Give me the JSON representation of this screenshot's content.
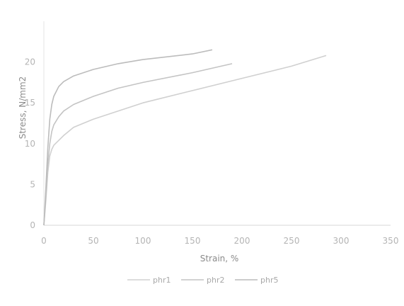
{
  "chart_data": {
    "type": "line",
    "title": "",
    "xlabel": "Strain, %",
    "ylabel": "Stress, N/mm2",
    "xlim": [
      0,
      350
    ],
    "ylim": [
      0,
      25
    ],
    "x_ticks": [
      "0",
      "50",
      "100",
      "150",
      "200",
      "250",
      "300",
      "350"
    ],
    "y_ticks": [
      "0",
      "5",
      "10",
      "15",
      "20"
    ],
    "grid": false,
    "legend_position": "bottom",
    "series": [
      {
        "name": "phr1",
        "color": "#d0d0d0",
        "x": [
          0,
          2,
          4,
          6,
          8,
          10,
          15,
          20,
          30,
          50,
          75,
          100,
          150,
          200,
          250,
          285
        ],
        "y": [
          0,
          3,
          6.5,
          8.5,
          9.3,
          9.8,
          10.4,
          11.0,
          12.0,
          13.0,
          14.0,
          15.0,
          16.5,
          18.0,
          19.5,
          20.8
        ]
      },
      {
        "name": "phr2",
        "color": "#c4c4c4",
        "x": [
          0,
          2,
          4,
          6,
          8,
          10,
          15,
          20,
          30,
          50,
          75,
          100,
          150,
          190
        ],
        "y": [
          0,
          3.5,
          7.5,
          10.0,
          11.5,
          12.3,
          13.3,
          14.0,
          14.8,
          15.8,
          16.8,
          17.5,
          18.7,
          19.8
        ]
      },
      {
        "name": "phr5",
        "color": "#bcbcbc",
        "x": [
          0,
          2,
          4,
          6,
          8,
          10,
          15,
          20,
          30,
          50,
          75,
          100,
          150,
          170
        ],
        "y": [
          0,
          4.5,
          9.5,
          13.0,
          14.8,
          15.8,
          17.0,
          17.6,
          18.3,
          19.1,
          19.8,
          20.3,
          21.0,
          21.5
        ]
      }
    ]
  }
}
